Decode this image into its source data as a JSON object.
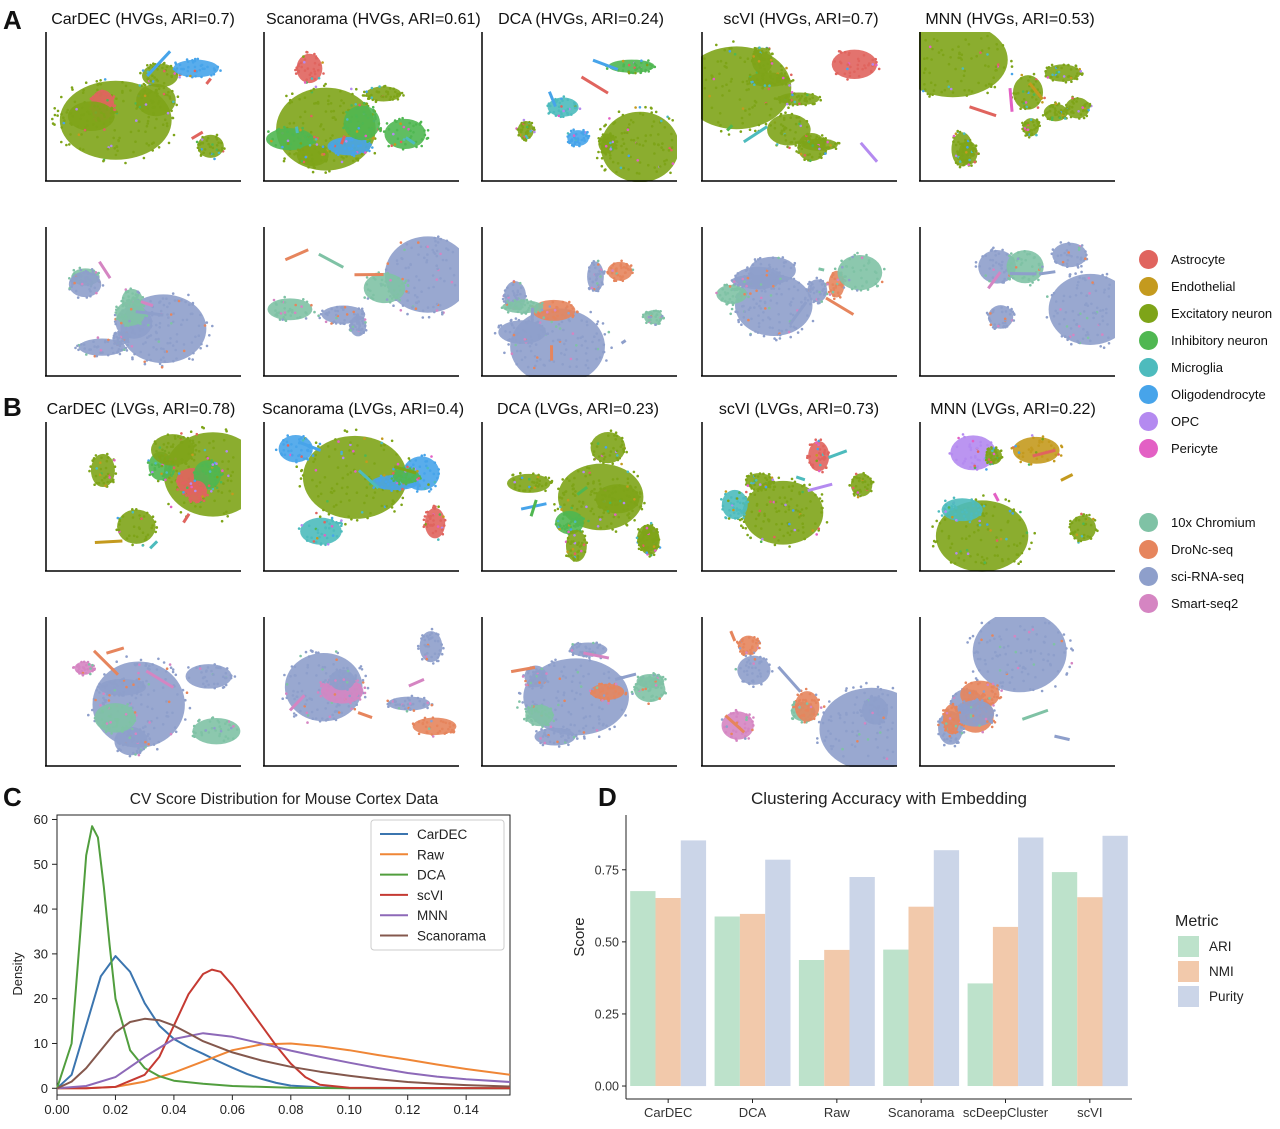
{
  "panels": {
    "a": "A",
    "b": "B",
    "c": "C",
    "d": "D"
  },
  "umap": {
    "hvg_titles": [
      "CarDEC (HVGs, ARI=0.7)",
      "Scanorama (HVGs, ARI=0.61)",
      "DCA (HVGs, ARI=0.24)",
      "scVI (HVGs, ARI=0.7)",
      "MNN (HVGs, ARI=0.53)"
    ],
    "lvg_titles": [
      "CarDEC (LVGs, ARI=0.78)",
      "Scanorama (LVGs, ARI=0.4)",
      "DCA (LVGs, ARI=0.23)",
      "scVI (LVGs, ARI=0.73)",
      "MNN (LVGs, ARI=0.22)"
    ]
  },
  "legend": {
    "cell_types": [
      {
        "label": "Astrocyte",
        "color": "#e0645e"
      },
      {
        "label": "Endothelial",
        "color": "#c49a1e"
      },
      {
        "label": "Excitatory neuron",
        "color": "#7ea418"
      },
      {
        "label": "Inhibitory neuron",
        "color": "#4fb751"
      },
      {
        "label": "Microglia",
        "color": "#4dbbbd"
      },
      {
        "label": "Oligodendrocyte",
        "color": "#47a4ea"
      },
      {
        "label": "OPC",
        "color": "#b48af0"
      },
      {
        "label": "Pericyte",
        "color": "#e360c4"
      }
    ],
    "protocols": [
      {
        "label": "10x Chromium",
        "color": "#7fc2a5"
      },
      {
        "label": "DroNc-seq",
        "color": "#e6855d"
      },
      {
        "label": "sci-RNA-seq",
        "color": "#8e9fcb"
      },
      {
        "label": "Smart-seq2",
        "color": "#d585c2"
      }
    ]
  },
  "chart_data": [
    {
      "type": "line",
      "title": "CV Score Distribution for Mouse Cortex Data",
      "xlabel": "",
      "ylabel": "Density",
      "xlim": [
        0,
        0.155
      ],
      "ylim": [
        -1.5,
        61
      ],
      "xticks": [
        "0.00",
        "0.02",
        "0.04",
        "0.06",
        "0.08",
        "0.10",
        "0.12",
        "0.14"
      ],
      "yticks": [
        "0",
        "10",
        "20",
        "30",
        "40",
        "50",
        "60"
      ],
      "legend_position": "top-right",
      "grid": false,
      "series": [
        {
          "name": "CarDEC",
          "color": "#3b75af",
          "x": [
            0,
            0.005,
            0.01,
            0.015,
            0.02,
            0.025,
            0.03,
            0.035,
            0.04,
            0.045,
            0.05,
            0.055,
            0.06,
            0.065,
            0.07,
            0.075,
            0.08,
            0.09,
            0.1,
            0.12,
            0.155
          ],
          "y": [
            0,
            3,
            14,
            25,
            29.5,
            26,
            19,
            14,
            11,
            9.2,
            7.7,
            6.1,
            4.6,
            3.2,
            2.1,
            1.2,
            0.6,
            0.2,
            0.05,
            0,
            0
          ]
        },
        {
          "name": "Raw",
          "color": "#ef8636",
          "x": [
            0,
            0.01,
            0.02,
            0.03,
            0.04,
            0.05,
            0.06,
            0.07,
            0.08,
            0.09,
            0.1,
            0.11,
            0.12,
            0.13,
            0.14,
            0.155
          ],
          "y": [
            0,
            0,
            0.3,
            1.5,
            3.5,
            6,
            8.5,
            9.8,
            10,
            9.4,
            8.5,
            7.4,
            6.4,
            5.3,
            4.3,
            3
          ]
        },
        {
          "name": "DCA",
          "color": "#519e3e",
          "x": [
            0,
            0.005,
            0.008,
            0.01,
            0.012,
            0.014,
            0.016,
            0.018,
            0.02,
            0.025,
            0.03,
            0.035,
            0.04,
            0.05,
            0.06,
            0.08,
            0.1,
            0.155
          ],
          "y": [
            0,
            10,
            35,
            52,
            58.5,
            56,
            45,
            32,
            20,
            8.5,
            4.5,
            2.7,
            1.7,
            1,
            0.5,
            0.1,
            0,
            0
          ]
        },
        {
          "name": "scVI",
          "color": "#c53a32",
          "x": [
            0,
            0.01,
            0.02,
            0.03,
            0.035,
            0.04,
            0.045,
            0.05,
            0.053,
            0.056,
            0.06,
            0.065,
            0.07,
            0.075,
            0.08,
            0.085,
            0.09,
            0.1,
            0.155
          ],
          "y": [
            0,
            0,
            0.3,
            3,
            7,
            14,
            21,
            25.5,
            26.5,
            26,
            23,
            18.5,
            14,
            9.5,
            5.5,
            2.5,
            0.8,
            0.1,
            0
          ]
        },
        {
          "name": "MNN",
          "color": "#8d69b8",
          "x": [
            0,
            0.01,
            0.02,
            0.03,
            0.04,
            0.05,
            0.06,
            0.07,
            0.08,
            0.09,
            0.1,
            0.11,
            0.12,
            0.13,
            0.14,
            0.155
          ],
          "y": [
            0,
            0.5,
            2.5,
            7,
            11,
            12.3,
            11.5,
            10,
            8.4,
            7,
            5.7,
            4.5,
            3.4,
            2.6,
            2,
            1.4
          ]
        },
        {
          "name": "Scanorama",
          "color": "#84584d",
          "x": [
            0,
            0.005,
            0.01,
            0.015,
            0.02,
            0.025,
            0.03,
            0.035,
            0.04,
            0.045,
            0.05,
            0.06,
            0.07,
            0.08,
            0.09,
            0.1,
            0.11,
            0.12,
            0.13,
            0.14,
            0.155
          ],
          "y": [
            0,
            1.5,
            4.5,
            8.5,
            12.5,
            14.8,
            15.5,
            15.2,
            14,
            12.3,
            10.5,
            8,
            6.2,
            4.8,
            3.7,
            2.8,
            2,
            1.4,
            1,
            0.7,
            0.4
          ]
        }
      ]
    },
    {
      "type": "bar",
      "title": "Clustering Accuracy with Embedding",
      "xlabel": "",
      "ylabel": "Score",
      "ylim": [
        -0.045,
        0.94
      ],
      "yticks": [
        "0.00",
        "0.25",
        "0.50",
        "0.75"
      ],
      "categories": [
        "CarDEC",
        "DCA",
        "Raw",
        "Scanorama",
        "scDeepCluster",
        "scVI"
      ],
      "legend_title": "Metric",
      "legend_position": "right",
      "grid": false,
      "series": [
        {
          "name": "ARI",
          "color": "#bde2cb",
          "values": [
            0.676,
            0.588,
            0.437,
            0.473,
            0.356,
            0.742
          ]
        },
        {
          "name": "NMI",
          "color": "#f2c9ab",
          "values": [
            0.652,
            0.597,
            0.472,
            0.622,
            0.552,
            0.655
          ]
        },
        {
          "name": "Purity",
          "color": "#cbd5e8",
          "values": [
            0.852,
            0.785,
            0.725,
            0.818,
            0.862,
            0.868
          ]
        }
      ]
    }
  ]
}
